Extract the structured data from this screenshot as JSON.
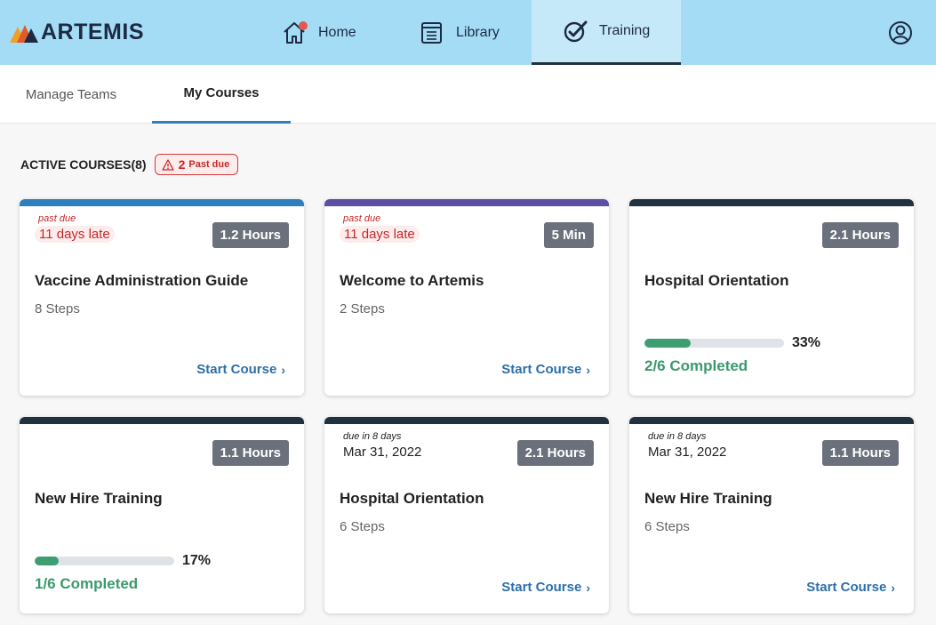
{
  "app": {
    "name": "ARTEMIS"
  },
  "nav": {
    "home": "Home",
    "library": "Library",
    "training": "Training"
  },
  "subtabs": {
    "manage": "Manage Teams",
    "courses": "My Courses"
  },
  "section": {
    "title": "ACTIVE COURSES(8)",
    "pastdue_count": "2",
    "pastdue_label": "Past due"
  },
  "colors": {
    "topbar": "#a4dcf5",
    "accent_blue": "#2f7fbf",
    "purple": "#5b4ea3",
    "navy": "#22313f",
    "past_due_red": "#c62828",
    "progress_green": "#3e9e72"
  },
  "cards": [
    {
      "due_small": "past due",
      "due_main": "11 days late",
      "duration": "1.2 Hours",
      "title": "Vaccine Administration Guide",
      "steps": "8 Steps",
      "action": "Start Course"
    },
    {
      "due_small": "past due",
      "due_main": "11 days late",
      "duration": "5 Min",
      "title": "Welcome to Artemis",
      "steps": "2 Steps",
      "action": "Start Course"
    },
    {
      "duration": "2.1 Hours",
      "title": "Hospital Orientation",
      "progress_pct": "33%",
      "progress_fraction": 0.33,
      "completed": "2/6 Completed"
    },
    {
      "duration": "1.1 Hours",
      "title": "New Hire Training",
      "progress_pct": "17%",
      "progress_fraction": 0.17,
      "completed": "1/6 Completed"
    },
    {
      "due_small": "due in 8 days",
      "due_main": "Mar 31, 2022",
      "duration": "2.1 Hours",
      "title": "Hospital Orientation",
      "steps": "6 Steps",
      "action": "Start Course"
    },
    {
      "due_small": "due in 8 days",
      "due_main": "Mar 31, 2022",
      "duration": "1.1 Hours",
      "title": "New Hire Training",
      "steps": "6 Steps",
      "action": "Start Course"
    }
  ]
}
